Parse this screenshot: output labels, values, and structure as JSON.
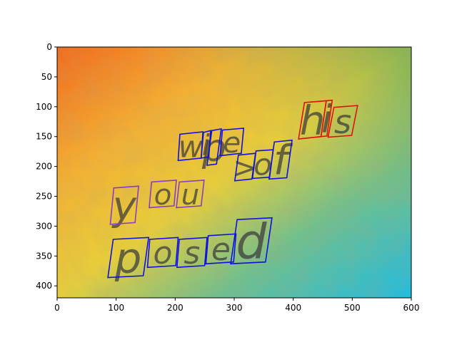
{
  "figure": {
    "x_axis": {
      "range": [
        0,
        600
      ],
      "ticks": [
        "0",
        "100",
        "200",
        "300",
        "400",
        "500",
        "600"
      ]
    },
    "y_axis": {
      "range": [
        0,
        420
      ],
      "inverted": true,
      "ticks": [
        "0",
        "50",
        "100",
        "150",
        "200",
        "250",
        "300",
        "350",
        "400"
      ]
    }
  },
  "scene": {
    "background": "grunge texture, orange top-left to yellow to teal/cyan bottom-right",
    "colors": {
      "blue_box": "#1010e0",
      "red_box": "#e01010",
      "purple_box": "#8a3cc8"
    }
  },
  "text_regions": [
    {
      "text": "wipe",
      "color": "blue",
      "chars": [
        {
          "ch": "w",
          "quad": [
            [
              208,
              146
            ],
            [
              247,
              142
            ],
            [
              244,
              186
            ],
            [
              205,
              190
            ]
          ]
        },
        {
          "ch": "i",
          "quad": [
            [
              248,
              143
            ],
            [
              260,
              140
            ],
            [
              257,
              184
            ],
            [
              244,
              186
            ]
          ]
        },
        {
          "ch": "p",
          "quad": [
            [
              262,
              140
            ],
            [
              278,
              137
            ],
            [
              270,
              196
            ],
            [
              254,
              198
            ]
          ]
        },
        {
          "ch": "e",
          "quad": [
            [
              280,
              139
            ],
            [
              316,
              136
            ],
            [
              312,
              178
            ],
            [
              276,
              182
            ]
          ]
        }
      ]
    },
    {
      "text": "his",
      "color": "red",
      "chars": [
        {
          "ch": "h",
          "quad": [
            [
              419,
              93
            ],
            [
              456,
              90
            ],
            [
              447,
              150
            ],
            [
              409,
              154
            ]
          ]
        },
        {
          "ch": "i",
          "quad": [
            [
              456,
              90
            ],
            [
              466,
              89
            ],
            [
              457,
              149
            ],
            [
              447,
              150
            ]
          ]
        },
        {
          "ch": "s",
          "quad": [
            [
              469,
              101
            ],
            [
              509,
              98
            ],
            [
              499,
              148
            ],
            [
              459,
              151
            ]
          ]
        }
      ]
    },
    {
      "text": ">of",
      "color": "blue",
      "chars": [
        {
          "ch": ">",
          "quad": [
            [
              307,
              181
            ],
            [
              336,
              178
            ],
            [
              330,
              221
            ],
            [
              301,
              224
            ]
          ]
        },
        {
          "ch": "o",
          "quad": [
            [
              337,
              174
            ],
            [
              366,
              172
            ],
            [
              360,
              218
            ],
            [
              331,
              220
            ]
          ]
        },
        {
          "ch": "f",
          "quad": [
            [
              368,
              159
            ],
            [
              398,
              156
            ],
            [
              389,
              219
            ],
            [
              359,
              221
            ]
          ]
        }
      ]
    },
    {
      "text": "you",
      "color": "purple",
      "chars": [
        {
          "ch": "y",
          "quad": [
            [
              96,
              236
            ],
            [
              138,
              233
            ],
            [
              132,
              294
            ],
            [
              90,
              297
            ]
          ]
        },
        {
          "ch": "o",
          "quad": [
            [
              160,
              226
            ],
            [
              202,
              223
            ],
            [
              198,
              266
            ],
            [
              156,
              269
            ]
          ]
        },
        {
          "ch": "u",
          "quad": [
            [
              207,
              226
            ],
            [
              249,
              223
            ],
            [
              244,
              266
            ],
            [
              202,
              269
            ]
          ]
        }
      ]
    },
    {
      "text": "posed",
      "color": "blue",
      "chars": [
        {
          "ch": "p",
          "quad": [
            [
              95,
              322
            ],
            [
              155,
              319
            ],
            [
              146,
              383
            ],
            [
              86,
              386
            ]
          ]
        },
        {
          "ch": "o",
          "quad": [
            [
              157,
              322
            ],
            [
              205,
              319
            ],
            [
              201,
              366
            ],
            [
              153,
              369
            ]
          ]
        },
        {
          "ch": "s",
          "quad": [
            [
              207,
              322
            ],
            [
              254,
              319
            ],
            [
              250,
              366
            ],
            [
              203,
              369
            ]
          ]
        },
        {
          "ch": "e",
          "quad": [
            [
              256,
              316
            ],
            [
              303,
              313
            ],
            [
              299,
              360
            ],
            [
              252,
              363
            ]
          ]
        },
        {
          "ch": "d",
          "quad": [
            [
              305,
              289
            ],
            [
              364,
              286
            ],
            [
              353,
              360
            ],
            [
              294,
              363
            ]
          ]
        }
      ]
    }
  ]
}
